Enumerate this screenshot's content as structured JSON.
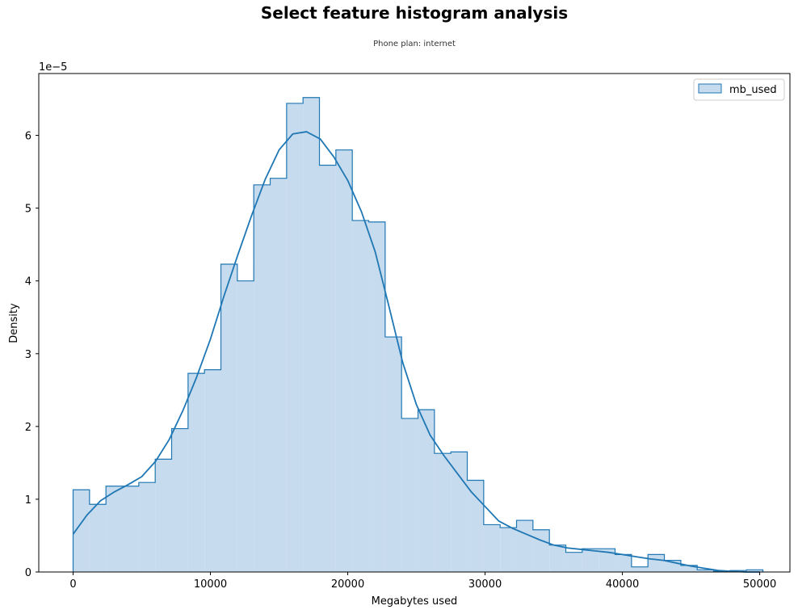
{
  "chart_data": {
    "type": "histogram",
    "title": "Select feature histogram analysis",
    "subtitle": "Phone plan: internet",
    "xlabel": "Megabytes used",
    "ylabel": "Density",
    "y_scale_label": "1e−5",
    "xlim": [
      -2500,
      52200
    ],
    "ylim": [
      0,
      6.85
    ],
    "x_ticks": [
      0,
      10000,
      20000,
      30000,
      40000,
      50000
    ],
    "y_ticks": [
      0,
      1,
      2,
      3,
      4,
      5,
      6
    ],
    "legend": {
      "placement": "top-right",
      "entries": [
        "mb_used"
      ]
    },
    "grid": false,
    "colors": {
      "edge": "#1f77b4",
      "fill": "#c6dbed",
      "kde": "#1f77b4"
    },
    "series": [
      {
        "name": "mb_used",
        "bin_start": 0,
        "bin_width": 1196,
        "values": [
          1.13,
          0.93,
          1.18,
          1.18,
          1.23,
          1.55,
          1.97,
          2.73,
          2.78,
          4.23,
          4.0,
          5.32,
          5.41,
          6.44,
          6.52,
          5.59,
          5.8,
          4.83,
          4.81,
          3.23,
          2.11,
          2.23,
          1.63,
          1.65,
          1.26,
          0.65,
          0.61,
          0.71,
          0.58,
          0.37,
          0.27,
          0.32,
          0.32,
          0.24,
          0.07,
          0.24,
          0.16,
          0.09,
          0.03,
          0.01,
          0.02,
          0.03
        ]
      }
    ],
    "kde": {
      "x": [
        0,
        1000,
        2000,
        3000,
        4000,
        5000,
        6000,
        7000,
        8000,
        9000,
        10000,
        11000,
        12000,
        13000,
        14000,
        15000,
        16000,
        17000,
        18000,
        19000,
        20000,
        21000,
        22000,
        23000,
        24000,
        25000,
        26000,
        27000,
        28000,
        29000,
        30000,
        31000,
        32000,
        33000,
        34000,
        35000,
        36000,
        37000,
        38000,
        39000,
        40000,
        41000,
        42000,
        43000,
        44000,
        45000,
        46000,
        47000,
        48000,
        49000,
        50000
      ],
      "y": [
        0.52,
        0.78,
        0.98,
        1.1,
        1.2,
        1.31,
        1.52,
        1.82,
        2.22,
        2.68,
        3.2,
        3.8,
        4.36,
        4.9,
        5.4,
        5.8,
        6.02,
        6.05,
        5.95,
        5.7,
        5.38,
        4.95,
        4.4,
        3.65,
        2.88,
        2.3,
        1.88,
        1.6,
        1.35,
        1.1,
        0.9,
        0.7,
        0.6,
        0.52,
        0.44,
        0.37,
        0.33,
        0.31,
        0.29,
        0.27,
        0.24,
        0.21,
        0.18,
        0.16,
        0.12,
        0.08,
        0.05,
        0.02,
        0.01,
        0.0,
        0.0
      ]
    }
  }
}
